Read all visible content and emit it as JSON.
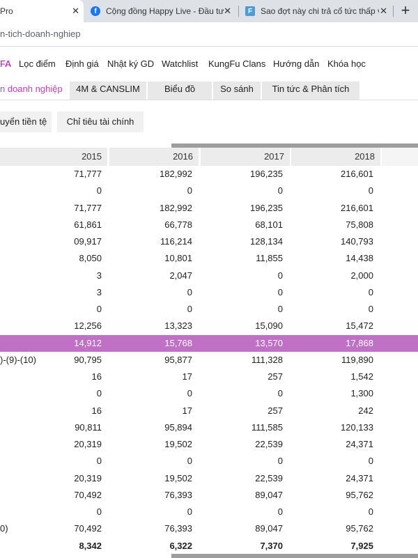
{
  "browser": {
    "tabs": [
      {
        "title": "Pro",
        "favicon": null,
        "active": true
      },
      {
        "title": "Cộng đồng Happy Live - Đầu tư",
        "favicon": "facebook-icon",
        "active": false
      },
      {
        "title": "Sao đợt này chi trả cổ tức thấp v",
        "favicon": "f-app-icon",
        "active": false
      }
    ],
    "close_glyph": "✕",
    "new_tab_glyph": "+",
    "url": "n-tich-doanh-nghiep"
  },
  "menu": {
    "items": [
      {
        "label": "FA",
        "active": true
      },
      {
        "label": "Lọc điểm",
        "active": false
      },
      {
        "label": "Định giá",
        "active": false
      },
      {
        "label": "Nhật ký GD",
        "active": false
      },
      {
        "label": "Watchlist",
        "active": false
      },
      {
        "label": "KungFu Clans",
        "active": false
      },
      {
        "label": "Hướng dẫn",
        "active": false
      },
      {
        "label": "Khóa học",
        "active": false
      }
    ]
  },
  "subtabs": [
    {
      "label": "n doanh nghiệp",
      "active": true
    },
    {
      "label": "4M & CANSLIM",
      "active": false
    },
    {
      "label": "Biểu đồ",
      "active": false
    },
    {
      "label": "So sánh",
      "active": false
    },
    {
      "label": "Tin tức & Phân tích",
      "active": false
    }
  ],
  "inner_tabs": [
    {
      "label": "uyển tiền tệ"
    },
    {
      "label": "Chỉ tiêu tài chính"
    }
  ],
  "table": {
    "years": [
      "2015",
      "2016",
      "2017",
      "2018"
    ],
    "rows": [
      {
        "label": "",
        "values": [
          "71,777",
          "182,992",
          "196,235",
          "216,601"
        ],
        "highlight": false,
        "bold": false
      },
      {
        "label": "",
        "values": [
          "0",
          "0",
          "0",
          "0"
        ],
        "highlight": false,
        "bold": false
      },
      {
        "label": "",
        "values": [
          "71,777",
          "182,992",
          "196,235",
          "216,601"
        ],
        "highlight": false,
        "bold": false
      },
      {
        "label": "",
        "values": [
          "61,861",
          "66,778",
          "68,101",
          "75,808"
        ],
        "highlight": false,
        "bold": false
      },
      {
        "label": "",
        "values": [
          "09,917",
          "116,214",
          "128,134",
          "140,793"
        ],
        "highlight": false,
        "bold": false
      },
      {
        "label": "",
        "values": [
          "8,050",
          "10,801",
          "11,855",
          "14,438"
        ],
        "highlight": false,
        "bold": false
      },
      {
        "label": "",
        "values": [
          "3",
          "2,047",
          "0",
          "2,000"
        ],
        "highlight": false,
        "bold": false
      },
      {
        "label": "",
        "values": [
          "3",
          "0",
          "0",
          "0"
        ],
        "highlight": false,
        "bold": false
      },
      {
        "label": "",
        "values": [
          "0",
          "0",
          "0",
          "0"
        ],
        "highlight": false,
        "bold": false
      },
      {
        "label": "",
        "values": [
          "12,256",
          "13,323",
          "15,090",
          "15,472"
        ],
        "highlight": false,
        "bold": false
      },
      {
        "label": "",
        "values": [
          "14,912",
          "15,768",
          "13,570",
          "17,868"
        ],
        "highlight": true,
        "bold": false
      },
      {
        "label": ")-(9)-(10)",
        "values": [
          "90,795",
          "95,877",
          "111,328",
          "119,890"
        ],
        "highlight": false,
        "bold": false
      },
      {
        "label": "",
        "values": [
          "16",
          "17",
          "257",
          "1,542"
        ],
        "highlight": false,
        "bold": false
      },
      {
        "label": "",
        "values": [
          "0",
          "0",
          "0",
          "1,300"
        ],
        "highlight": false,
        "bold": false
      },
      {
        "label": "",
        "values": [
          "16",
          "17",
          "257",
          "242"
        ],
        "highlight": false,
        "bold": false
      },
      {
        "label": "",
        "values": [
          "90,811",
          "95,894",
          "111,585",
          "120,133"
        ],
        "highlight": false,
        "bold": false
      },
      {
        "label": "",
        "values": [
          "20,319",
          "19,502",
          "22,539",
          "24,371"
        ],
        "highlight": false,
        "bold": false
      },
      {
        "label": "",
        "values": [
          "0",
          "0",
          "0",
          "0"
        ],
        "highlight": false,
        "bold": false
      },
      {
        "label": "",
        "values": [
          "20,319",
          "19,502",
          "22,539",
          "24,371"
        ],
        "highlight": false,
        "bold": false
      },
      {
        "label": "",
        "values": [
          "70,492",
          "76,393",
          "89,047",
          "95,762"
        ],
        "highlight": false,
        "bold": false
      },
      {
        "label": "",
        "values": [
          "0",
          "0",
          "0",
          "0"
        ],
        "highlight": false,
        "bold": false
      },
      {
        "label": "0)",
        "values": [
          "70,492",
          "76,393",
          "89,047",
          "95,762"
        ],
        "highlight": false,
        "bold": false
      },
      {
        "label": "",
        "values": [
          "8,342",
          "6,322",
          "7,370",
          "7,925"
        ],
        "highlight": false,
        "bold": true
      }
    ]
  },
  "colors": {
    "accent": "#c000c0",
    "highlight_row": "#c071c6"
  }
}
